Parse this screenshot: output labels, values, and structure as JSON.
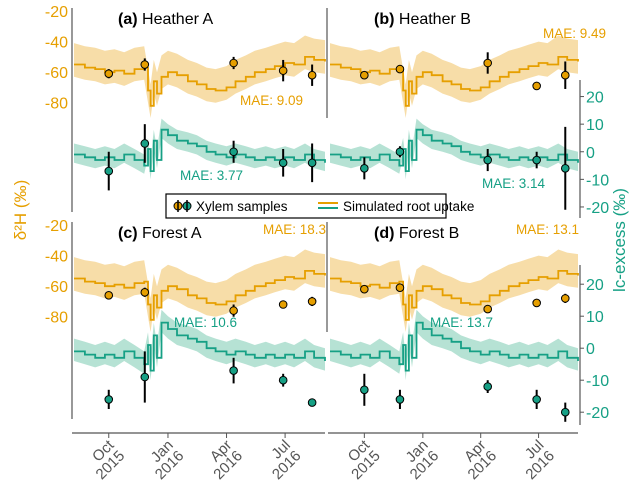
{
  "colors": {
    "d2h": "#E69F00",
    "d2h_band": "#F7DDA8",
    "lc": "#16A085",
    "lc_band": "#B6E2D4",
    "point_err": "#000000",
    "axis": "#555555"
  },
  "labels": {
    "y_left": "δ²H (‰)",
    "y_right": "lc-excess (‰)",
    "legend_points": "Xylem samples",
    "legend_line": "Simulated root uptake"
  },
  "chart_data": {
    "type": "line",
    "x_tick_labels": [
      {
        "month": "Oct",
        "year": "2015",
        "date": "2015-10-01"
      },
      {
        "month": "Jan",
        "year": "2016",
        "date": "2016-01-01"
      },
      {
        "month": "Apr",
        "year": "2016",
        "date": "2016-04-01"
      },
      {
        "month": "Jul",
        "year": "2016",
        "date": "2016-07-01"
      }
    ],
    "xlim": [
      "2015-08-08",
      "2016-09-01"
    ],
    "y_left_ticks": [
      -20,
      -40,
      -60,
      -80
    ],
    "y_left_range": [
      -90,
      -18
    ],
    "y_right_ticks": [
      20,
      10,
      0,
      -10,
      -20
    ],
    "y_right_range": [
      -24,
      26
    ],
    "panels": [
      {
        "tag": "(a)",
        "name": "Heather A",
        "mae_d2h": "MAE: 9.09",
        "mae_lc": "MAE: 3.77",
        "d2h_points": [
          {
            "date": "2015-10-01",
            "y": -61,
            "err": 3
          },
          {
            "date": "2015-11-26",
            "y": -55,
            "err": 4
          },
          {
            "date": "2016-04-12",
            "y": -54,
            "err": 4
          },
          {
            "date": "2016-06-28",
            "y": -59,
            "err": 7
          },
          {
            "date": "2016-08-12",
            "y": -62,
            "err": 7
          }
        ],
        "lc_points": [
          {
            "date": "2015-10-01",
            "y": -7,
            "err": 7
          },
          {
            "date": "2015-11-26",
            "y": 3,
            "err": 7
          },
          {
            "date": "2016-04-12",
            "y": 0,
            "err": 4
          },
          {
            "date": "2016-06-28",
            "y": -4,
            "err": 5
          },
          {
            "date": "2016-08-12",
            "y": -4,
            "err": 7
          }
        ]
      },
      {
        "tag": "(b)",
        "name": "Heather B",
        "mae_d2h": "MAE: 9.49",
        "mae_lc": "MAE: 3.14",
        "d2h_points": [
          {
            "date": "2015-10-01",
            "y": -62,
            "err": 2
          },
          {
            "date": "2015-11-26",
            "y": -58,
            "err": 2
          },
          {
            "date": "2016-04-12",
            "y": -54,
            "err": 7
          },
          {
            "date": "2016-06-28",
            "y": -69,
            "err": 2
          },
          {
            "date": "2016-08-12",
            "y": -62,
            "err": 9
          }
        ],
        "lc_points": [
          {
            "date": "2015-10-01",
            "y": -6,
            "err": 4
          },
          {
            "date": "2015-11-26",
            "y": 0,
            "err": 2
          },
          {
            "date": "2016-04-12",
            "y": -3,
            "err": 4
          },
          {
            "date": "2016-06-28",
            "y": -3,
            "err": 3
          },
          {
            "date": "2016-08-12",
            "y": -6,
            "err": 15
          }
        ]
      },
      {
        "tag": "(c)",
        "name": "Forest A",
        "mae_d2h": "MAE: 18.3",
        "mae_lc": "MAE: 10.6",
        "d2h_points": [
          {
            "date": "2015-10-01",
            "y": -66,
            "err": 2
          },
          {
            "date": "2015-11-26",
            "y": -64,
            "err": 3
          },
          {
            "date": "2016-04-12",
            "y": -76,
            "err": 4
          },
          {
            "date": "2016-06-28",
            "y": -72,
            "err": 2
          },
          {
            "date": "2016-08-12",
            "y": -70,
            "err": 3
          }
        ],
        "lc_points": [
          {
            "date": "2015-10-01",
            "y": -16,
            "err": 3
          },
          {
            "date": "2015-11-26",
            "y": -9,
            "err": 8
          },
          {
            "date": "2016-04-12",
            "y": -7,
            "err": 4
          },
          {
            "date": "2016-06-28",
            "y": -10,
            "err": 2
          },
          {
            "date": "2016-08-12",
            "y": -17,
            "err": 1
          }
        ]
      },
      {
        "tag": "(d)",
        "name": "Forest B",
        "mae_d2h": "MAE: 13.1",
        "mae_lc": "MAE: 13.7",
        "d2h_points": [
          {
            "date": "2015-10-01",
            "y": -62,
            "err": 2
          },
          {
            "date": "2015-11-26",
            "y": -61,
            "err": 2
          },
          {
            "date": "2016-04-12",
            "y": -75,
            "err": 2
          },
          {
            "date": "2016-06-28",
            "y": -71,
            "err": 2
          },
          {
            "date": "2016-08-12",
            "y": -68,
            "err": 3
          }
        ],
        "lc_points": [
          {
            "date": "2015-10-01",
            "y": -13,
            "err": 5
          },
          {
            "date": "2015-11-26",
            "y": -16,
            "err": 3
          },
          {
            "date": "2016-04-12",
            "y": -12,
            "err": 2
          },
          {
            "date": "2016-06-28",
            "y": -16,
            "err": 3
          },
          {
            "date": "2016-08-12",
            "y": -20,
            "err": 3
          }
        ]
      }
    ],
    "d2h_sim_series": [
      {
        "date": "2015-08-08",
        "y": -55
      },
      {
        "date": "2015-08-25",
        "y": -57
      },
      {
        "date": "2015-09-10",
        "y": -58
      },
      {
        "date": "2015-09-25",
        "y": -60
      },
      {
        "date": "2015-10-10",
        "y": -59
      },
      {
        "date": "2015-10-25",
        "y": -61
      },
      {
        "date": "2015-11-10",
        "y": -58
      },
      {
        "date": "2015-11-25",
        "y": -57
      },
      {
        "date": "2015-12-01",
        "y": -72
      },
      {
        "date": "2015-12-05",
        "y": -82
      },
      {
        "date": "2015-12-10",
        "y": -66
      },
      {
        "date": "2015-12-15",
        "y": -74
      },
      {
        "date": "2015-12-22",
        "y": -63
      },
      {
        "date": "2016-01-01",
        "y": -60
      },
      {
        "date": "2016-01-15",
        "y": -62
      },
      {
        "date": "2016-02-01",
        "y": -66
      },
      {
        "date": "2016-02-15",
        "y": -68
      },
      {
        "date": "2016-03-01",
        "y": -71
      },
      {
        "date": "2016-03-15",
        "y": -72
      },
      {
        "date": "2016-04-01",
        "y": -70
      },
      {
        "date": "2016-04-15",
        "y": -66
      },
      {
        "date": "2016-05-01",
        "y": -63
      },
      {
        "date": "2016-05-15",
        "y": -60
      },
      {
        "date": "2016-06-01",
        "y": -58
      },
      {
        "date": "2016-06-15",
        "y": -56
      },
      {
        "date": "2016-07-01",
        "y": -54
      },
      {
        "date": "2016-07-15",
        "y": -55
      },
      {
        "date": "2016-08-01",
        "y": -50
      },
      {
        "date": "2016-08-15",
        "y": -52
      },
      {
        "date": "2016-09-01",
        "y": -53
      }
    ],
    "lc_sim_series": [
      {
        "date": "2015-08-08",
        "y": -1
      },
      {
        "date": "2015-08-25",
        "y": -2
      },
      {
        "date": "2015-09-10",
        "y": -3
      },
      {
        "date": "2015-09-25",
        "y": -2
      },
      {
        "date": "2015-10-10",
        "y": -3
      },
      {
        "date": "2015-10-25",
        "y": -1
      },
      {
        "date": "2015-11-10",
        "y": -3
      },
      {
        "date": "2015-11-25",
        "y": -5
      },
      {
        "date": "2015-12-01",
        "y": 1
      },
      {
        "date": "2015-12-05",
        "y": -7
      },
      {
        "date": "2015-12-10",
        "y": 4
      },
      {
        "date": "2015-12-15",
        "y": -3
      },
      {
        "date": "2015-12-22",
        "y": 8
      },
      {
        "date": "2016-01-01",
        "y": 6
      },
      {
        "date": "2016-01-15",
        "y": 4
      },
      {
        "date": "2016-02-01",
        "y": 3
      },
      {
        "date": "2016-02-15",
        "y": 2
      },
      {
        "date": "2016-03-01",
        "y": 0
      },
      {
        "date": "2016-03-15",
        "y": -1
      },
      {
        "date": "2016-04-01",
        "y": -2
      },
      {
        "date": "2016-04-15",
        "y": -1
      },
      {
        "date": "2016-05-01",
        "y": -2
      },
      {
        "date": "2016-05-15",
        "y": -3
      },
      {
        "date": "2016-06-01",
        "y": -2
      },
      {
        "date": "2016-06-15",
        "y": -3
      },
      {
        "date": "2016-07-01",
        "y": -2
      },
      {
        "date": "2016-07-15",
        "y": -3
      },
      {
        "date": "2016-08-01",
        "y": -1
      },
      {
        "date": "2016-08-15",
        "y": -3
      },
      {
        "date": "2016-09-01",
        "y": -4
      }
    ]
  }
}
